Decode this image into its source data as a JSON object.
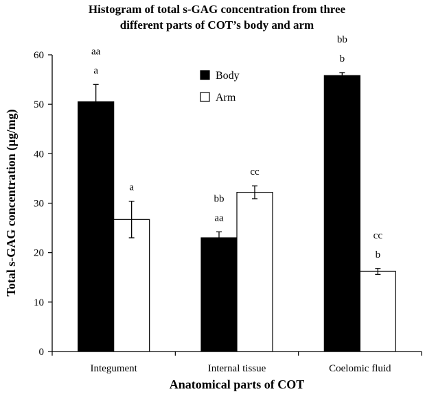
{
  "chart_data": {
    "type": "bar",
    "title_lines": [
      "Histogram of total s-GAG concentration from three",
      "different parts of COT’s body and arm"
    ],
    "xlabel": "Anatomical parts of COT",
    "ylabel": "Total s-GAG concentration (µg/mg)",
    "ylim": [
      0,
      60
    ],
    "yticks": [
      0,
      10,
      20,
      30,
      40,
      50,
      60
    ],
    "grid": false,
    "legend_position": "top-center",
    "categories": [
      "Integument",
      "Internal tissue",
      "Coelomic fluid"
    ],
    "series": [
      {
        "name": "Body",
        "color": "#000000",
        "values": [
          50.5,
          23.0,
          55.8
        ],
        "errors": [
          3.5,
          1.2,
          0.6
        ],
        "annotations": [
          [
            "aa",
            "a"
          ],
          [
            "bb",
            "aa"
          ],
          [
            "bb",
            "b"
          ]
        ]
      },
      {
        "name": "Arm",
        "color": "#ffffff",
        "values": [
          26.7,
          32.2,
          16.2
        ],
        "errors": [
          3.7,
          1.3,
          0.6
        ],
        "annotations": [
          [
            "a"
          ],
          [
            "cc"
          ],
          [
            "cc",
            "b"
          ]
        ]
      }
    ]
  }
}
